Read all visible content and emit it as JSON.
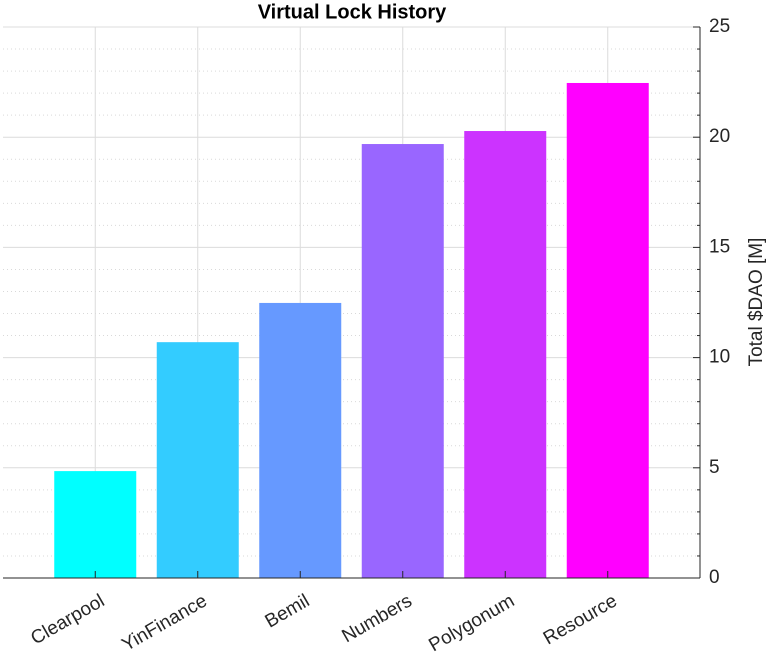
{
  "chart_data": {
    "type": "bar",
    "title": "Virtual Lock History",
    "y_label": "Total $DAO [M]",
    "categories": [
      "Clearpool",
      "YinFinance",
      "Bemil",
      "Numbers",
      "Polygonum",
      "Resource"
    ],
    "values": [
      4.85,
      10.7,
      12.48,
      19.69,
      20.28,
      22.46
    ],
    "colors": [
      "#00ffff",
      "#33ccff",
      "#6699ff",
      "#9966ff",
      "#cc33ff",
      "#ff00ff"
    ],
    "ylim": [
      0,
      25
    ],
    "yticks": [
      0,
      5,
      10,
      15,
      20,
      25
    ],
    "yminorticks": [
      1,
      2,
      3,
      4,
      6,
      7,
      8,
      9,
      11,
      12,
      13,
      14,
      16,
      17,
      18,
      19,
      21,
      22,
      23,
      24
    ],
    "grid": true,
    "minor_grid": true,
    "y_axis_side": "right"
  }
}
